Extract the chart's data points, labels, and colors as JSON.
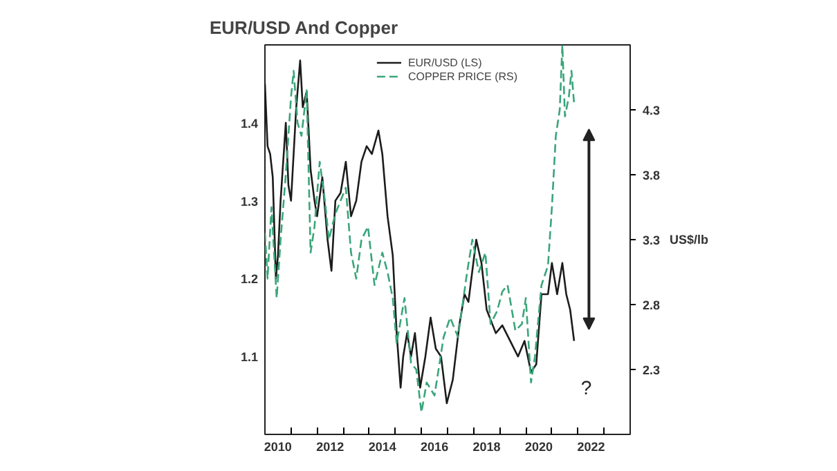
{
  "chart_data": {
    "type": "line",
    "title": "EUR/USD And Copper",
    "y2label": "US$/lb",
    "xlim": [
      2010,
      2024
    ],
    "xticks": [
      {
        "value": 2010.5,
        "label": "2010"
      },
      {
        "value": 2012.5,
        "label": "2012"
      },
      {
        "value": 2014.5,
        "label": "2014"
      },
      {
        "value": 2016.5,
        "label": "2016"
      },
      {
        "value": 2018.5,
        "label": "2018"
      },
      {
        "value": 2020.5,
        "label": "2020"
      },
      {
        "value": 2022.5,
        "label": "2022"
      },
      {
        "value": 2011,
        "label": null
      },
      {
        "value": 2012,
        "label": null
      },
      {
        "value": 2013,
        "label": null
      },
      {
        "value": 2014,
        "label": null
      },
      {
        "value": 2015,
        "label": null
      },
      {
        "value": 2016,
        "label": null
      },
      {
        "value": 2017,
        "label": null
      },
      {
        "value": 2018,
        "label": null
      },
      {
        "value": 2019,
        "label": null
      },
      {
        "value": 2020,
        "label": null
      },
      {
        "value": 2021,
        "label": null
      },
      {
        "value": 2022,
        "label": null
      },
      {
        "value": 2023,
        "label": null
      }
    ],
    "ylim": [
      1.0,
      1.5
    ],
    "yticks": [
      1.1,
      1.2,
      1.3,
      1.4
    ],
    "y2lim": [
      1.8,
      4.8
    ],
    "y2ticks": [
      2.3,
      2.8,
      3.3,
      3.8,
      4.3
    ],
    "grid": false,
    "legend": "top",
    "marker": "none",
    "series": [
      {
        "name": "EUR/USD (LS)",
        "color": "#1c1c1c",
        "line_style": "solid",
        "x": [
          2010.0,
          2010.1,
          2010.2,
          2010.3,
          2010.42,
          2010.5,
          2010.6,
          2010.8,
          2010.9,
          2011.0,
          2011.2,
          2011.35,
          2011.45,
          2011.6,
          2011.75,
          2011.9,
          2012.0,
          2012.2,
          2012.4,
          2012.55,
          2012.7,
          2012.9,
          2013.1,
          2013.3,
          2013.5,
          2013.7,
          2013.9,
          2014.1,
          2014.35,
          2014.5,
          2014.7,
          2014.9,
          2015.05,
          2015.2,
          2015.3,
          2015.45,
          2015.6,
          2015.75,
          2015.95,
          2016.15,
          2016.35,
          2016.55,
          2016.75,
          2016.97,
          2017.2,
          2017.45,
          2017.65,
          2017.8,
          2018.1,
          2018.3,
          2018.5,
          2018.85,
          2019.1,
          2019.4,
          2019.7,
          2019.95,
          2020.2,
          2020.4,
          2020.6,
          2020.85,
          2021.0,
          2021.2,
          2021.4,
          2021.55,
          2021.7,
          2021.85
        ],
        "values": [
          1.45,
          1.37,
          1.36,
          1.33,
          1.2,
          1.23,
          1.3,
          1.4,
          1.32,
          1.3,
          1.42,
          1.48,
          1.42,
          1.44,
          1.34,
          1.3,
          1.28,
          1.33,
          1.25,
          1.21,
          1.3,
          1.31,
          1.35,
          1.28,
          1.3,
          1.35,
          1.37,
          1.36,
          1.39,
          1.36,
          1.28,
          1.23,
          1.13,
          1.06,
          1.1,
          1.13,
          1.1,
          1.13,
          1.06,
          1.1,
          1.15,
          1.11,
          1.1,
          1.04,
          1.07,
          1.14,
          1.18,
          1.17,
          1.25,
          1.22,
          1.16,
          1.13,
          1.14,
          1.12,
          1.1,
          1.12,
          1.08,
          1.09,
          1.18,
          1.18,
          1.22,
          1.18,
          1.22,
          1.18,
          1.16,
          1.12
        ]
      },
      {
        "name": "COPPER PRICE (RS)",
        "color": "#3aa57a",
        "line_style": "dashed",
        "axis": "y2",
        "x": [
          2010.0,
          2010.1,
          2010.25,
          2010.45,
          2010.6,
          2010.8,
          2011.0,
          2011.1,
          2011.25,
          2011.4,
          2011.6,
          2011.75,
          2011.9,
          2012.1,
          2012.3,
          2012.45,
          2012.7,
          2012.9,
          2013.1,
          2013.3,
          2013.5,
          2013.7,
          2013.95,
          2014.2,
          2014.5,
          2014.7,
          2014.9,
          2015.05,
          2015.35,
          2015.6,
          2015.8,
          2016.0,
          2016.2,
          2016.5,
          2016.85,
          2017.1,
          2017.4,
          2017.75,
          2017.95,
          2018.2,
          2018.45,
          2018.65,
          2018.9,
          2019.1,
          2019.3,
          2019.6,
          2019.85,
          2020.0,
          2020.2,
          2020.35,
          2020.6,
          2020.85,
          2021.0,
          2021.15,
          2021.3,
          2021.4,
          2021.5,
          2021.65,
          2021.75,
          2021.85
        ],
        "values": [
          3.35,
          3.0,
          3.55,
          2.85,
          3.3,
          3.8,
          4.4,
          4.6,
          4.2,
          4.1,
          4.45,
          3.2,
          3.4,
          3.9,
          3.6,
          3.3,
          3.5,
          3.6,
          3.7,
          3.2,
          3.0,
          3.3,
          3.4,
          2.95,
          3.2,
          3.05,
          2.85,
          2.5,
          2.85,
          2.35,
          2.3,
          1.97,
          2.2,
          2.1,
          2.55,
          2.7,
          2.55,
          3.05,
          3.3,
          3.05,
          3.2,
          2.65,
          2.75,
          2.9,
          2.95,
          2.6,
          2.65,
          2.85,
          2.2,
          2.4,
          2.95,
          3.1,
          3.55,
          4.1,
          4.3,
          4.8,
          4.25,
          4.4,
          4.6,
          4.35
        ]
      }
    ],
    "annotations": [
      "?"
    ]
  }
}
